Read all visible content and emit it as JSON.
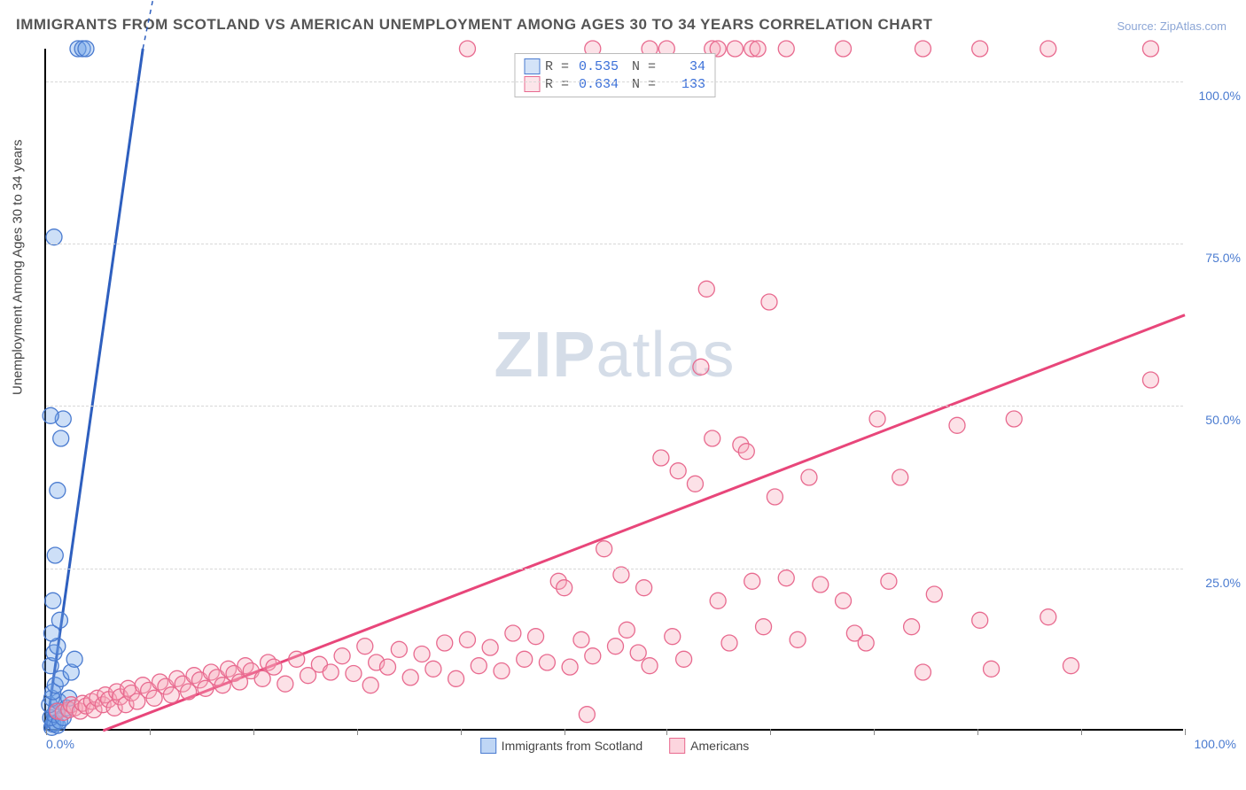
{
  "title": "IMMIGRANTS FROM SCOTLAND VS AMERICAN UNEMPLOYMENT AMONG AGES 30 TO 34 YEARS CORRELATION CHART",
  "source": "Source: ZipAtlas.com",
  "watermark_a": "ZIP",
  "watermark_b": "atlas",
  "chart": {
    "type": "scatter",
    "xlim": [
      0,
      100
    ],
    "ylim": [
      0,
      105
    ],
    "background_color": "#ffffff",
    "grid_color": "#d8d8d8",
    "axis_color": "#000000",
    "tick_label_color": "#4a7bd0",
    "y_axis_title": "Unemployment Among Ages 30 to 34 years",
    "y_ticks": [
      {
        "v": 25,
        "label": "25.0%"
      },
      {
        "v": 50,
        "label": "50.0%"
      },
      {
        "v": 75,
        "label": "75.0%"
      },
      {
        "v": 100,
        "label": "100.0%"
      }
    ],
    "x_tick_positions": [
      0,
      9.1,
      18.2,
      27.3,
      36.4,
      45.5,
      54.5,
      63.6,
      72.7,
      81.8,
      90.9,
      100
    ],
    "x_min_label": "0.0%",
    "x_max_label": "100.0%",
    "marker_radius": 9,
    "marker_stroke_width": 1.3,
    "marker_fill_opacity": 0.35,
    "series": [
      {
        "name": "Immigrants from Scotland",
        "color": "#6fa3e8",
        "stroke": "#4a7bd0",
        "stat_R": "0.535",
        "stat_N": "34",
        "trend": {
          "x1": 0,
          "y1": 0,
          "x2": 8.5,
          "y2": 105,
          "color": "#2e5fbf",
          "width": 3,
          "dash_ext_x2": 12
        },
        "points": [
          [
            0.5,
            0.5
          ],
          [
            0.6,
            1
          ],
          [
            0.8,
            1.2
          ],
          [
            1,
            0.8
          ],
          [
            0.4,
            2
          ],
          [
            0.7,
            2.5
          ],
          [
            1.2,
            1.5
          ],
          [
            0.9,
            3
          ],
          [
            1.5,
            2
          ],
          [
            0.3,
            4
          ],
          [
            1.1,
            4.5
          ],
          [
            0.5,
            5
          ],
          [
            1.8,
            3.5
          ],
          [
            0.6,
            6
          ],
          [
            2,
            5
          ],
          [
            0.8,
            7
          ],
          [
            1.3,
            8
          ],
          [
            0.4,
            10
          ],
          [
            2.2,
            9
          ],
          [
            0.7,
            12
          ],
          [
            2.5,
            11
          ],
          [
            1,
            13
          ],
          [
            0.5,
            15
          ],
          [
            1.2,
            17
          ],
          [
            0.6,
            20
          ],
          [
            0.8,
            27
          ],
          [
            1,
            37
          ],
          [
            1.3,
            45
          ],
          [
            1.5,
            48
          ],
          [
            0.4,
            48.5
          ],
          [
            0.7,
            76
          ],
          [
            2.8,
            105
          ],
          [
            3.2,
            105
          ],
          [
            3.5,
            105
          ]
        ]
      },
      {
        "name": "Americans",
        "color": "#f5a8bb",
        "stroke": "#e86a8f",
        "stat_R": "0.634",
        "stat_N": "133",
        "trend": {
          "x1": 5,
          "y1": 0,
          "x2": 100,
          "y2": 64,
          "color": "#e8467a",
          "width": 3
        },
        "points": [
          [
            1,
            3
          ],
          [
            1.5,
            2.8
          ],
          [
            2,
            3.2
          ],
          [
            2.2,
            4
          ],
          [
            2.5,
            3.5
          ],
          [
            3,
            3
          ],
          [
            3.2,
            4.2
          ],
          [
            3.5,
            3.8
          ],
          [
            4,
            4.5
          ],
          [
            4.2,
            3.2
          ],
          [
            4.5,
            5
          ],
          [
            5,
            4
          ],
          [
            5.2,
            5.5
          ],
          [
            5.5,
            4.8
          ],
          [
            6,
            3.5
          ],
          [
            6.2,
            6
          ],
          [
            6.5,
            5.2
          ],
          [
            7,
            4
          ],
          [
            7.2,
            6.5
          ],
          [
            7.5,
            5.8
          ],
          [
            8,
            4.5
          ],
          [
            8.5,
            7
          ],
          [
            9,
            6.2
          ],
          [
            9.5,
            5
          ],
          [
            10,
            7.5
          ],
          [
            10.5,
            6.8
          ],
          [
            11,
            5.5
          ],
          [
            11.5,
            8
          ],
          [
            12,
            7.2
          ],
          [
            12.5,
            6
          ],
          [
            13,
            8.5
          ],
          [
            13.5,
            7.8
          ],
          [
            14,
            6.5
          ],
          [
            14.5,
            9
          ],
          [
            15,
            8.2
          ],
          [
            15.5,
            7
          ],
          [
            16,
            9.5
          ],
          [
            16.5,
            8.8
          ],
          [
            17,
            7.5
          ],
          [
            17.5,
            10
          ],
          [
            18,
            9.2
          ],
          [
            19,
            8
          ],
          [
            19.5,
            10.5
          ],
          [
            20,
            9.8
          ],
          [
            21,
            7.2
          ],
          [
            22,
            11
          ],
          [
            23,
            8.5
          ],
          [
            24,
            10.2
          ],
          [
            25,
            9
          ],
          [
            26,
            11.5
          ],
          [
            27,
            8.8
          ],
          [
            28,
            13
          ],
          [
            28.5,
            7
          ],
          [
            29,
            10.5
          ],
          [
            30,
            9.8
          ],
          [
            31,
            12.5
          ],
          [
            32,
            8.2
          ],
          [
            33,
            11.8
          ],
          [
            34,
            9.5
          ],
          [
            35,
            13.5
          ],
          [
            36,
            8
          ],
          [
            37,
            14
          ],
          [
            38,
            10
          ],
          [
            39,
            12.8
          ],
          [
            40,
            9.2
          ],
          [
            41,
            15
          ],
          [
            42,
            11
          ],
          [
            43,
            14.5
          ],
          [
            44,
            10.5
          ],
          [
            45,
            23
          ],
          [
            45.5,
            22
          ],
          [
            46,
            9.8
          ],
          [
            47,
            14
          ],
          [
            47.5,
            2.5
          ],
          [
            48,
            11.5
          ],
          [
            49,
            28
          ],
          [
            50,
            13
          ],
          [
            50.5,
            24
          ],
          [
            51,
            15.5
          ],
          [
            52,
            12
          ],
          [
            52.5,
            22
          ],
          [
            53,
            10
          ],
          [
            54,
            42
          ],
          [
            55,
            14.5
          ],
          [
            55.5,
            40
          ],
          [
            56,
            11
          ],
          [
            57,
            38
          ],
          [
            57.5,
            56
          ],
          [
            58,
            68
          ],
          [
            58.5,
            45
          ],
          [
            59,
            20
          ],
          [
            60,
            13.5
          ],
          [
            61,
            44
          ],
          [
            61.5,
            43
          ],
          [
            62,
            23
          ],
          [
            63,
            16
          ],
          [
            63.5,
            66
          ],
          [
            64,
            36
          ],
          [
            65,
            23.5
          ],
          [
            66,
            14
          ],
          [
            67,
            39
          ],
          [
            68,
            22.5
          ],
          [
            70,
            20
          ],
          [
            71,
            15
          ],
          [
            72,
            13.5
          ],
          [
            73,
            48
          ],
          [
            74,
            23
          ],
          [
            75,
            39
          ],
          [
            76,
            16
          ],
          [
            77,
            9
          ],
          [
            78,
            21
          ],
          [
            80,
            47
          ],
          [
            82,
            17
          ],
          [
            83,
            9.5
          ],
          [
            85,
            48
          ],
          [
            88,
            17.5
          ],
          [
            90,
            10
          ],
          [
            97,
            54
          ],
          [
            37,
            105
          ],
          [
            48,
            105
          ],
          [
            53,
            105
          ],
          [
            54.5,
            105
          ],
          [
            58.5,
            105
          ],
          [
            59,
            105
          ],
          [
            60.5,
            105
          ],
          [
            62,
            105
          ],
          [
            62.5,
            105
          ],
          [
            65,
            105
          ],
          [
            70,
            105
          ],
          [
            77,
            105
          ],
          [
            82,
            105
          ],
          [
            88,
            105
          ],
          [
            97,
            105
          ]
        ]
      }
    ]
  },
  "bottom_legend": [
    {
      "label": "Immigrants from Scotland",
      "fill": "#bfd6f5",
      "stroke": "#4a7bd0"
    },
    {
      "label": "Americans",
      "fill": "#fcd5de",
      "stroke": "#e86a8f"
    }
  ]
}
